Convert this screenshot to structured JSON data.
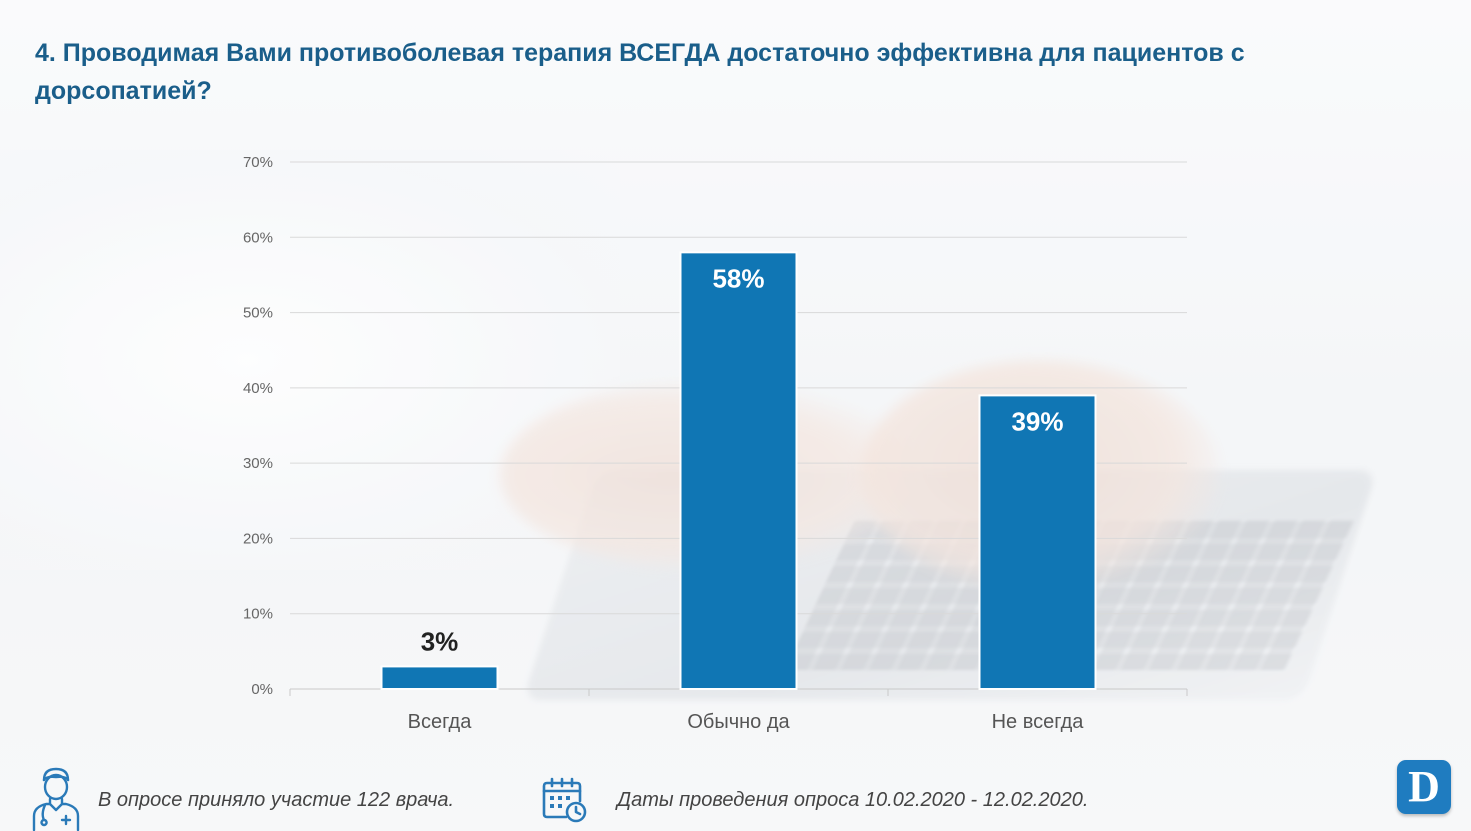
{
  "slide": {
    "title": "4. Проводимая Вами противоболевая терапия ВСЕГДА достаточно эффективна для пациентов с дорсопатией?"
  },
  "chart_data": {
    "type": "bar",
    "categories": [
      "Всегда",
      "Обычно да",
      "Не всегда"
    ],
    "values": [
      3,
      58,
      39
    ],
    "data_labels": [
      "3%",
      "58%",
      "39%"
    ],
    "yticks": [
      "0%",
      "10%",
      "20%",
      "30%",
      "40%",
      "50%",
      "60%",
      "70%"
    ],
    "ylim": [
      0,
      70
    ],
    "unit": "%",
    "grid": true,
    "bar_color": "#1076b4",
    "title": "",
    "xlabel": "",
    "ylabel": ""
  },
  "footer": {
    "participants": "В опросе приняло участие 122 врача.",
    "dates": "Даты проведения опроса 10.02.2020 - 12.02.2020.",
    "logo_letter": "D",
    "doctor_icon": "doctor-icon",
    "calendar_icon": "calendar-icon"
  },
  "colors": {
    "title": "#1a5e8a",
    "bar": "#1076b4",
    "icon": "#2a7ab8"
  }
}
